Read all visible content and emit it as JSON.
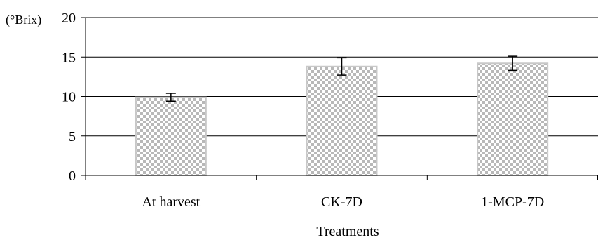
{
  "chart_data": {
    "type": "bar",
    "categories": [
      "At harvest",
      "CK-7D",
      "1-MCP-7D"
    ],
    "series": [
      {
        "values": [
          9.9,
          13.8,
          14.2
        ],
        "error": [
          0.5,
          1.1,
          0.9
        ]
      }
    ],
    "xlabel": "Treatments",
    "ylabel": "(°Brix)",
    "ylim": [
      0,
      20
    ],
    "yticks": [
      0,
      5,
      10,
      15,
      20
    ],
    "grid": true,
    "legend": "none",
    "bar_fill": "checkered",
    "colors": {
      "bar_checker": "#b8b8b8",
      "bar_base": "#ffffff",
      "bar_border": "#c8c8c8",
      "axis": "#000000",
      "grid": "#000000"
    }
  }
}
